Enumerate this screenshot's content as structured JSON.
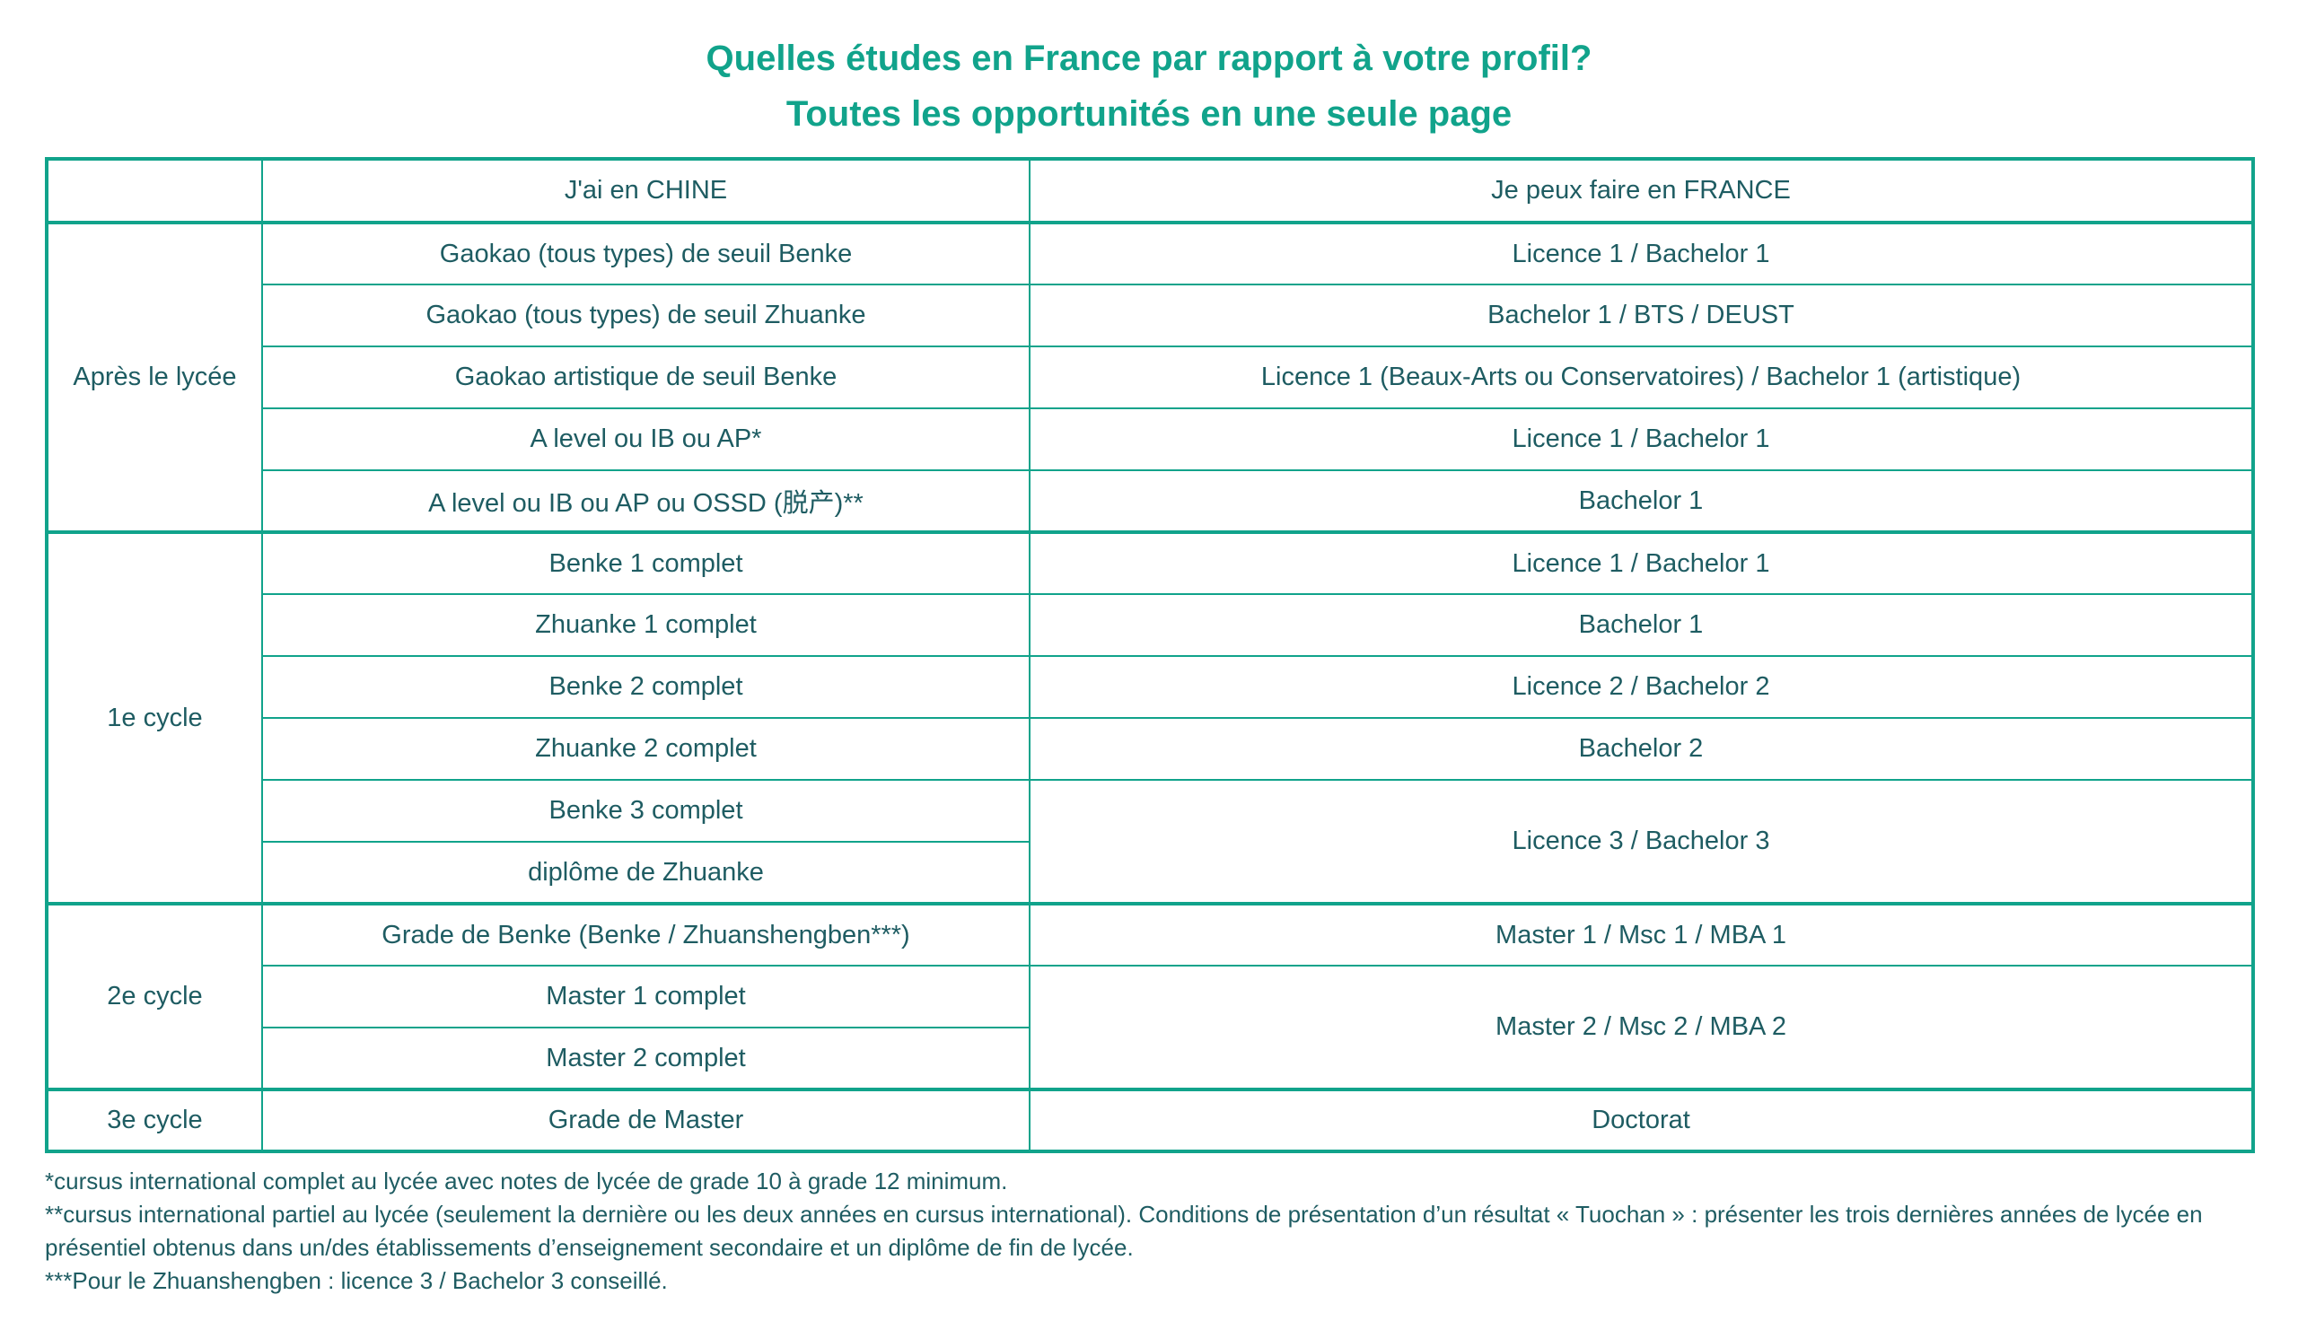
{
  "title": {
    "line1": "Quelles études en France par rapport à votre profil?",
    "line2": "Toutes les opportunités en une seule page"
  },
  "table": {
    "columns": {
      "chine": "J'ai en CHINE",
      "france": "Je peux faire en FRANCE"
    },
    "sections": [
      {
        "label": "Après le lycée",
        "rows": [
          {
            "chine": "Gaokao (tous types) de seuil Benke",
            "france": "Licence 1 / Bachelor 1"
          },
          {
            "chine": "Gaokao (tous types) de seuil Zhuanke",
            "france": "Bachelor 1 / BTS / DEUST"
          },
          {
            "chine": "Gaokao artistique de seuil Benke",
            "france": "Licence 1 (Beaux-Arts ou Conservatoires) / Bachelor 1 (artistique)"
          },
          {
            "chine": "A level ou IB ou AP*",
            "france": "Licence 1 / Bachelor 1"
          },
          {
            "chine": "A level ou IB ou AP ou OSSD (脱产)**",
            "france": "Bachelor 1"
          }
        ]
      },
      {
        "label": "1e cycle",
        "rows": [
          {
            "chine": "Benke 1 complet",
            "france": "Licence 1 / Bachelor 1"
          },
          {
            "chine": "Zhuanke 1 complet",
            "france": "Bachelor 1"
          },
          {
            "chine": "Benke 2 complet",
            "france": "Licence 2 / Bachelor 2"
          },
          {
            "chine": "Zhuanke 2 complet",
            "france": "Bachelor 2"
          },
          {
            "chine": "Benke 3 complet",
            "france": "Licence 3 / Bachelor 3"
          },
          {
            "chine": "diplôme de Zhuanke",
            "france": null
          }
        ]
      },
      {
        "label": "2e cycle",
        "rows": [
          {
            "chine": "Grade de Benke (Benke / Zhuanshengben***)",
            "france": "Master 1 / Msc 1 / MBA 1"
          },
          {
            "chine": "Master 1 complet",
            "france": "Master 2 / Msc 2 / MBA 2"
          },
          {
            "chine": "Master 2 complet",
            "france": null
          }
        ]
      },
      {
        "label": "3e cycle",
        "rows": [
          {
            "chine": "Grade de Master",
            "france": "Doctorat"
          }
        ]
      }
    ]
  },
  "footnotes": [
    "*cursus international complet au lycée avec notes de lycée de grade 10 à grade 12 minimum.",
    "**cursus international partiel au lycée (seulement la dernière ou les deux années en cursus international). Conditions de présentation d’un résultat « Tuochan » : présenter les trois dernières années de lycée en présentiel obtenus dans un/des établissements d’enseignement secondaire et un diplôme de fin de lycée.",
    "***Pour le Zhuanshengben : licence 3 / Bachelor 3 conseillé."
  ],
  "colors": {
    "accent": "#11a38b",
    "text": "#1e5c62",
    "background": "#ffffff"
  }
}
